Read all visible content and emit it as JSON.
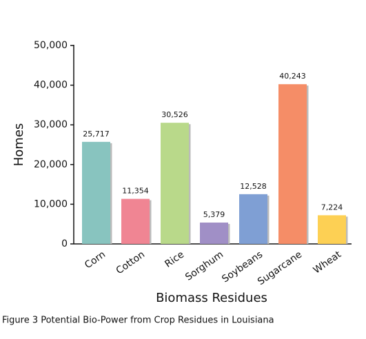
{
  "chart_data": {
    "type": "bar",
    "x_label": "Biomass Residues",
    "y_label": "Homes",
    "caption": "Figure 3 Potential Bio-Power from Crop Residues in Louisiana",
    "categories": [
      "Corn",
      "Cotton",
      "Rice",
      "Sorghum",
      "Soybeans",
      "Sugarcane",
      "Wheat"
    ],
    "values": [
      25717,
      11354,
      30526,
      5379,
      12528,
      40243,
      7224
    ],
    "value_labels": [
      "25,717",
      "11,354",
      "30,526",
      "5,379",
      "12,528",
      "40,243",
      "7,224"
    ],
    "colors": [
      "#88c4bf",
      "#f08593",
      "#b9d98a",
      "#a08fc6",
      "#7f9fd4",
      "#f58d67",
      "#fdd054"
    ],
    "ylim": [
      0,
      50000
    ],
    "yticks": [
      0,
      {
        "value": 10000,
        "label": "10,000"
      },
      {
        "value": 20000,
        "label": "20,000"
      },
      {
        "value": 30000,
        "label": "30,000"
      },
      {
        "value": 40000,
        "label": "40,000"
      },
      {
        "value": 50000,
        "label": "50,000"
      }
    ],
    "grid": false
  }
}
